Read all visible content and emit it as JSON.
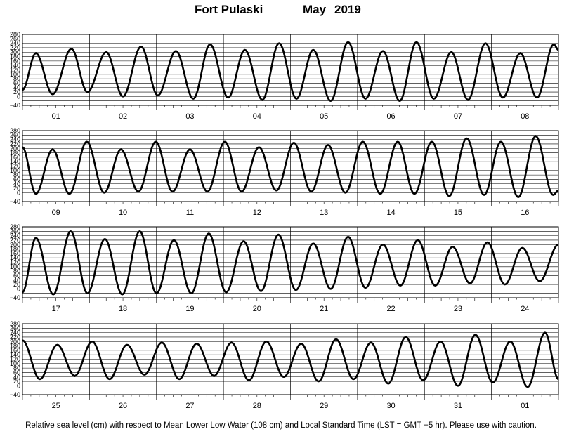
{
  "header": {
    "station": "Fort Pulaski",
    "month": "May",
    "year": "2019"
  },
  "footnote": "Relative sea level (cm) with respect to Mean Lower Low Water (108 cm) and Local Standard Time (LST = GMT −5 hr). Please use with caution.",
  "chart_data": {
    "type": "line",
    "title": "Fort Pulaski May 2019",
    "ylabel": "Relative sea level (cm)",
    "ylim": [
      -40,
      280
    ],
    "y_ticks": [
      "280",
      "260",
      "240",
      "220",
      "200",
      "180",
      "160",
      "140",
      "120",
      "100",
      "80",
      "60",
      "40",
      "20",
      "0",
      "−40"
    ],
    "grid": true,
    "panels": [
      {
        "days": [
          "01",
          "02",
          "03",
          "04",
          "05",
          "06",
          "07",
          "08"
        ],
        "extrema": [
          {
            "t": 0.0,
            "v": 30
          },
          {
            "t": 0.2,
            "v": 195
          },
          {
            "t": 0.45,
            "v": 10
          },
          {
            "t": 0.73,
            "v": 215
          },
          {
            "t": 0.97,
            "v": 20
          },
          {
            "t": 1.25,
            "v": 200
          },
          {
            "t": 1.5,
            "v": 0
          },
          {
            "t": 1.77,
            "v": 225
          },
          {
            "t": 2.02,
            "v": 5
          },
          {
            "t": 2.29,
            "v": 205
          },
          {
            "t": 2.55,
            "v": -10
          },
          {
            "t": 2.8,
            "v": 235
          },
          {
            "t": 3.07,
            "v": -5
          },
          {
            "t": 3.32,
            "v": 210
          },
          {
            "t": 3.58,
            "v": -15
          },
          {
            "t": 3.83,
            "v": 240
          },
          {
            "t": 4.09,
            "v": -10
          },
          {
            "t": 4.34,
            "v": 210
          },
          {
            "t": 4.6,
            "v": -20
          },
          {
            "t": 4.86,
            "v": 245
          },
          {
            "t": 5.12,
            "v": -10
          },
          {
            "t": 5.38,
            "v": 205
          },
          {
            "t": 5.63,
            "v": -20
          },
          {
            "t": 5.88,
            "v": 245
          },
          {
            "t": 6.14,
            "v": -10
          },
          {
            "t": 6.4,
            "v": 200
          },
          {
            "t": 6.65,
            "v": -15
          },
          {
            "t": 6.91,
            "v": 240
          },
          {
            "t": 7.17,
            "v": -5
          },
          {
            "t": 7.43,
            "v": 195
          },
          {
            "t": 7.68,
            "v": -5
          },
          {
            "t": 7.93,
            "v": 235
          },
          {
            "t": 8.0,
            "v": 210
          }
        ]
      },
      {
        "days": [
          "09",
          "10",
          "11",
          "12",
          "13",
          "14",
          "15",
          "16"
        ],
        "extrema": [
          {
            "t": 0.0,
            "v": 205
          },
          {
            "t": 0.2,
            "v": -5
          },
          {
            "t": 0.45,
            "v": 195
          },
          {
            "t": 0.7,
            "v": -5
          },
          {
            "t": 0.96,
            "v": 230
          },
          {
            "t": 1.22,
            "v": 0
          },
          {
            "t": 1.47,
            "v": 195
          },
          {
            "t": 1.73,
            "v": 5
          },
          {
            "t": 1.99,
            "v": 230
          },
          {
            "t": 2.24,
            "v": 5
          },
          {
            "t": 2.5,
            "v": 195
          },
          {
            "t": 2.76,
            "v": 5
          },
          {
            "t": 3.02,
            "v": 230
          },
          {
            "t": 3.27,
            "v": 5
          },
          {
            "t": 3.53,
            "v": 205
          },
          {
            "t": 3.79,
            "v": 10
          },
          {
            "t": 4.05,
            "v": 225
          },
          {
            "t": 4.31,
            "v": 5
          },
          {
            "t": 4.56,
            "v": 215
          },
          {
            "t": 4.82,
            "v": 0
          },
          {
            "t": 5.08,
            "v": 230
          },
          {
            "t": 5.34,
            "v": -5
          },
          {
            "t": 5.6,
            "v": 230
          },
          {
            "t": 5.85,
            "v": -5
          },
          {
            "t": 6.11,
            "v": 230
          },
          {
            "t": 6.37,
            "v": -15
          },
          {
            "t": 6.63,
            "v": 245
          },
          {
            "t": 6.89,
            "v": -10
          },
          {
            "t": 7.14,
            "v": 230
          },
          {
            "t": 7.4,
            "v": -20
          },
          {
            "t": 7.66,
            "v": 255
          },
          {
            "t": 7.92,
            "v": -10
          },
          {
            "t": 8.0,
            "v": 10
          }
        ]
      },
      {
        "days": [
          "17",
          "18",
          "19",
          "20",
          "21",
          "22",
          "23",
          "24"
        ],
        "extrema": [
          {
            "t": 0.0,
            "v": -15
          },
          {
            "t": 0.2,
            "v": 230
          },
          {
            "t": 0.46,
            "v": -25
          },
          {
            "t": 0.72,
            "v": 260
          },
          {
            "t": 0.97,
            "v": -20
          },
          {
            "t": 1.23,
            "v": 225
          },
          {
            "t": 1.49,
            "v": -25
          },
          {
            "t": 1.75,
            "v": 260
          },
          {
            "t": 2.0,
            "v": -20
          },
          {
            "t": 2.26,
            "v": 220
          },
          {
            "t": 2.52,
            "v": -20
          },
          {
            "t": 2.78,
            "v": 250
          },
          {
            "t": 3.04,
            "v": -15
          },
          {
            "t": 3.3,
            "v": 215
          },
          {
            "t": 3.56,
            "v": -10
          },
          {
            "t": 3.82,
            "v": 245
          },
          {
            "t": 4.08,
            "v": -5
          },
          {
            "t": 4.34,
            "v": 205
          },
          {
            "t": 4.6,
            "v": 0
          },
          {
            "t": 4.86,
            "v": 235
          },
          {
            "t": 5.12,
            "v": 5
          },
          {
            "t": 5.38,
            "v": 200
          },
          {
            "t": 5.64,
            "v": 15
          },
          {
            "t": 5.9,
            "v": 220
          },
          {
            "t": 6.16,
            "v": 15
          },
          {
            "t": 6.42,
            "v": 190
          },
          {
            "t": 6.68,
            "v": 25
          },
          {
            "t": 6.94,
            "v": 210
          },
          {
            "t": 7.2,
            "v": 20
          },
          {
            "t": 7.46,
            "v": 185
          },
          {
            "t": 7.72,
            "v": 35
          },
          {
            "t": 8.0,
            "v": 200
          }
        ]
      },
      {
        "days": [
          "25",
          "26",
          "27",
          "28",
          "29",
          "30",
          "31",
          "01"
        ],
        "extrema": [
          {
            "t": 0.0,
            "v": 205
          },
          {
            "t": 0.26,
            "v": 30
          },
          {
            "t": 0.52,
            "v": 185
          },
          {
            "t": 0.78,
            "v": 45
          },
          {
            "t": 1.04,
            "v": 200
          },
          {
            "t": 1.3,
            "v": 30
          },
          {
            "t": 1.56,
            "v": 185
          },
          {
            "t": 1.82,
            "v": 50
          },
          {
            "t": 2.08,
            "v": 195
          },
          {
            "t": 2.34,
            "v": 30
          },
          {
            "t": 2.6,
            "v": 190
          },
          {
            "t": 2.86,
            "v": 45
          },
          {
            "t": 3.12,
            "v": 195
          },
          {
            "t": 3.38,
            "v": 25
          },
          {
            "t": 3.64,
            "v": 200
          },
          {
            "t": 3.9,
            "v": 40
          },
          {
            "t": 4.16,
            "v": 190
          },
          {
            "t": 4.42,
            "v": 20
          },
          {
            "t": 4.68,
            "v": 210
          },
          {
            "t": 4.94,
            "v": 30
          },
          {
            "t": 5.2,
            "v": 195
          },
          {
            "t": 5.46,
            "v": 10
          },
          {
            "t": 5.72,
            "v": 220
          },
          {
            "t": 5.98,
            "v": 25
          },
          {
            "t": 6.24,
            "v": 200
          },
          {
            "t": 6.5,
            "v": 0
          },
          {
            "t": 6.76,
            "v": 230
          },
          {
            "t": 7.02,
            "v": 15
          },
          {
            "t": 7.28,
            "v": 200
          },
          {
            "t": 7.54,
            "v": -5
          },
          {
            "t": 7.8,
            "v": 240
          },
          {
            "t": 8.0,
            "v": 30
          }
        ]
      }
    ]
  }
}
